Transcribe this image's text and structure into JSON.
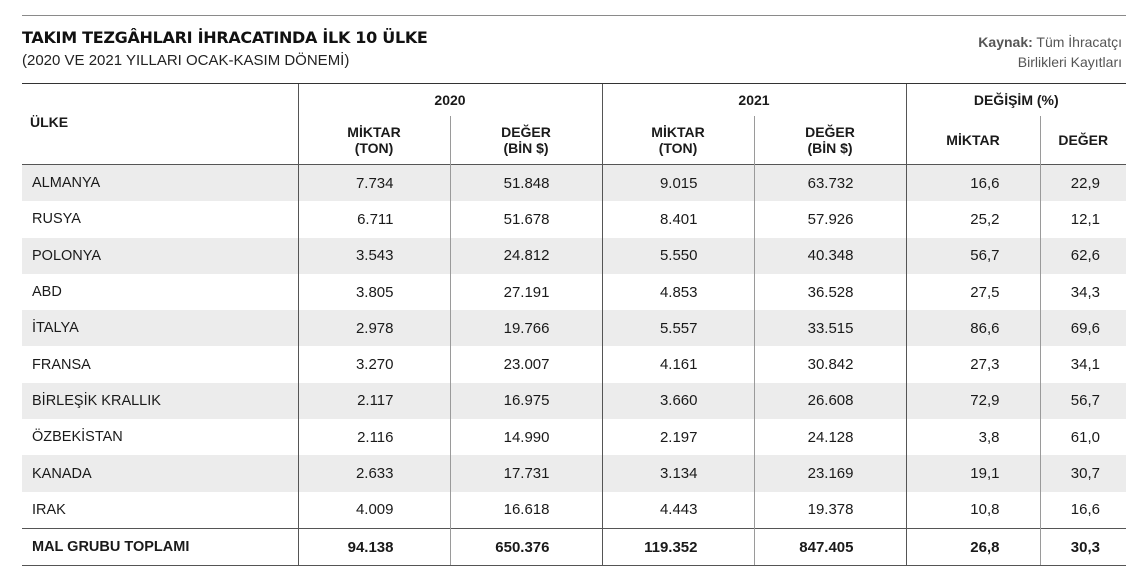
{
  "header": {
    "title": "TAKIM TEZGÂHLARI İHRACATINDA İLK 10 ÜLKE",
    "subtitle": "(2020 VE 2021 YILLARI OCAK-KASIM DÖNEMİ)",
    "source_label": "Kaynak:",
    "source_text": "Tüm İhracatçı",
    "source_text2": "Birlikleri Kayıtları"
  },
  "table": {
    "country_header": "ÜLKE",
    "year_2020": "2020",
    "year_2021": "2021",
    "change_header": "DEĞİŞİM (%)",
    "miktar_l1": "MİKTAR",
    "miktar_l2": "(TON)",
    "deger_l1": "DEĞER",
    "deger_l2": "(BİN $)",
    "chg_miktar": "MİKTAR",
    "chg_deger": "DEĞER",
    "rows": [
      {
        "country": "ALMANYA",
        "m2020": "7.734",
        "d2020": "51.848",
        "m2021": "9.015",
        "d2021": "63.732",
        "cm": "16,6",
        "cd": "22,9"
      },
      {
        "country": "RUSYA",
        "m2020": "6.711",
        "d2020": "51.678",
        "m2021": "8.401",
        "d2021": "57.926",
        "cm": "25,2",
        "cd": "12,1"
      },
      {
        "country": "POLONYA",
        "m2020": "3.543",
        "d2020": "24.812",
        "m2021": "5.550",
        "d2021": "40.348",
        "cm": "56,7",
        "cd": "62,6"
      },
      {
        "country": "ABD",
        "m2020": "3.805",
        "d2020": "27.191",
        "m2021": "4.853",
        "d2021": "36.528",
        "cm": "27,5",
        "cd": "34,3"
      },
      {
        "country": "İTALYA",
        "m2020": "2.978",
        "d2020": "19.766",
        "m2021": "5.557",
        "d2021": "33.515",
        "cm": "86,6",
        "cd": "69,6"
      },
      {
        "country": "FRANSA",
        "m2020": "3.270",
        "d2020": "23.007",
        "m2021": "4.161",
        "d2021": "30.842",
        "cm": "27,3",
        "cd": "34,1"
      },
      {
        "country": "BİRLEŞİK KRALLIK",
        "m2020": "2.117",
        "d2020": "16.975",
        "m2021": "3.660",
        "d2021": "26.608",
        "cm": "72,9",
        "cd": "56,7"
      },
      {
        "country": "ÖZBEKİSTAN",
        "m2020": "2.116",
        "d2020": "14.990",
        "m2021": "2.197",
        "d2021": "24.128",
        "cm": "3,8",
        "cd": "61,0"
      },
      {
        "country": "KANADA",
        "m2020": "2.633",
        "d2020": "17.731",
        "m2021": "3.134",
        "d2021": "23.169",
        "cm": "19,1",
        "cd": "30,7"
      },
      {
        "country": "IRAK",
        "m2020": "4.009",
        "d2020": "16.618",
        "m2021": "4.443",
        "d2021": "19.378",
        "cm": "10,8",
        "cd": "16,6"
      }
    ],
    "total": {
      "country": "MAL GRUBU TOPLAMI",
      "m2020": "94.138",
      "d2020": "650.376",
      "m2021": "119.352",
      "d2021": "847.405",
      "cm": "26,8",
      "cd": "30,3"
    }
  }
}
